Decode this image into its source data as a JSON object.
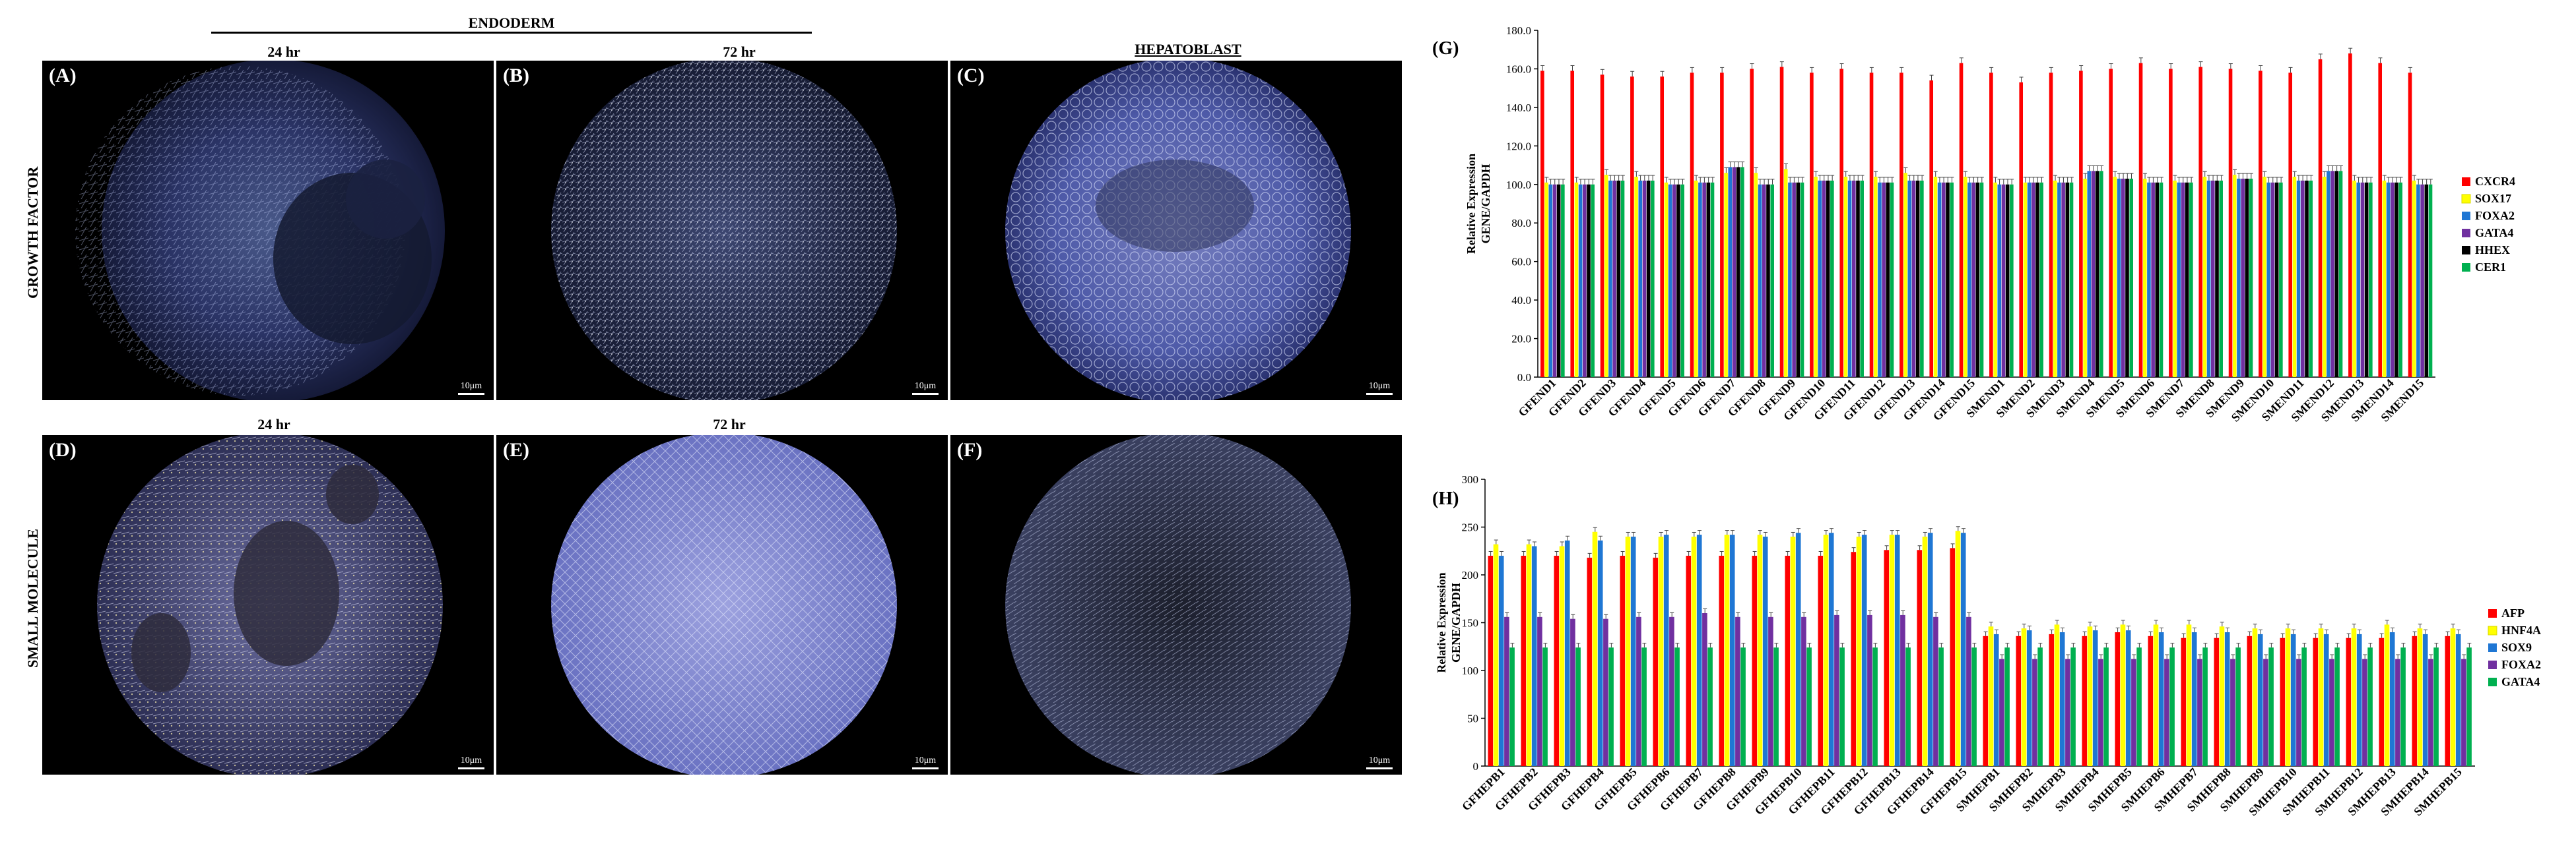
{
  "figure": {
    "endoderm_header": "ENDODERM",
    "col_24hr_top": "24 hr",
    "col_72hr_top": "72 hr",
    "hepatoblast_header": "HEPATOBLAST",
    "col_24hr_bottom": "24 hr",
    "col_72hr_bottom": "72 hr",
    "row_growth_factor": "GROWTH FACTOR",
    "row_small_molecule": "SMALL MOLECULE",
    "panels": [
      {
        "label": "(A)",
        "scale": "10μm"
      },
      {
        "label": "(B)",
        "scale": "10μm"
      },
      {
        "label": "(C)",
        "scale": "10μm"
      },
      {
        "label": "(D)",
        "scale": "10μm"
      },
      {
        "label": "(E)",
        "scale": "10μm"
      },
      {
        "label": "(F)",
        "scale": "10μm"
      }
    ],
    "colors": {
      "red": "#ff0000",
      "yellow": "#ffff00",
      "blue": "#1f77d4",
      "purple": "#7030a0",
      "black": "#000000",
      "green": "#00b050"
    }
  },
  "chart_data": [
    {
      "panel_label": "(G)",
      "type": "bar",
      "title": "",
      "ylabel_line1": "Relative Expression",
      "ylabel_line2": "GENE/GAPDH",
      "ylim": [
        0,
        180
      ],
      "yticks": [
        "0.0",
        "20.0",
        "40.0",
        "60.0",
        "80.0",
        "100.0",
        "120.0",
        "140.0",
        "160.0",
        "180.0"
      ],
      "categories": [
        "GFEND1",
        "GFEND2",
        "GFEND3",
        "GFEND4",
        "GFEND5",
        "GFEND6",
        "GFEND7",
        "GFEND8",
        "GFEND9",
        "GFEND10",
        "GFEND11",
        "GFEND12",
        "GFEND13",
        "GFEND14",
        "GFEND15",
        "SMEND1",
        "SMEND2",
        "SMEND3",
        "SMEND4",
        "SMEND5",
        "SMEND6",
        "SMEND7",
        "SMEND8",
        "SMEND9",
        "SMEND10",
        "SMEND11",
        "SMEND12",
        "SMEND13",
        "SMEND14",
        "SMEND15"
      ],
      "series": [
        {
          "name": "CXCR4",
          "color": "#ff0000",
          "values": [
            159,
            159,
            157,
            156,
            156,
            158,
            158,
            160,
            161,
            158,
            160,
            158,
            158,
            154,
            163,
            158,
            153,
            158,
            159,
            160,
            163,
            160,
            161,
            160,
            159,
            158,
            165,
            168,
            163,
            158
          ]
        },
        {
          "name": "SOX17",
          "color": "#ffff00",
          "values": [
            101,
            101,
            105,
            104,
            101,
            102,
            106,
            106,
            108,
            104,
            104,
            104,
            106,
            104,
            104,
            101,
            101,
            102,
            103,
            104,
            103,
            102,
            104,
            105,
            104,
            104,
            104,
            102,
            102,
            102
          ]
        },
        {
          "name": "FOXA2",
          "color": "#1f77d4",
          "values": [
            100,
            100,
            102,
            102,
            100,
            101,
            109,
            100,
            101,
            102,
            102,
            101,
            102,
            101,
            101,
            100,
            101,
            101,
            107,
            103,
            101,
            101,
            102,
            103,
            101,
            102,
            107,
            101,
            101,
            100
          ]
        },
        {
          "name": "GATA4",
          "color": "#7030a0",
          "values": [
            100,
            100,
            102,
            102,
            100,
            101,
            109,
            100,
            101,
            102,
            102,
            101,
            102,
            101,
            101,
            100,
            101,
            101,
            107,
            103,
            101,
            101,
            102,
            103,
            101,
            102,
            107,
            101,
            101,
            100
          ]
        },
        {
          "name": "HHEX",
          "color": "#000000",
          "values": [
            100,
            100,
            102,
            102,
            100,
            101,
            109,
            100,
            101,
            102,
            102,
            101,
            102,
            101,
            101,
            100,
            101,
            101,
            107,
            103,
            101,
            101,
            102,
            103,
            101,
            102,
            107,
            101,
            101,
            100
          ]
        },
        {
          "name": "CER1",
          "color": "#00b050",
          "values": [
            100,
            100,
            102,
            102,
            100,
            101,
            109,
            100,
            101,
            102,
            102,
            101,
            102,
            101,
            101,
            100,
            101,
            101,
            107,
            103,
            101,
            101,
            102,
            103,
            101,
            102,
            107,
            101,
            101,
            100
          ]
        }
      ]
    },
    {
      "panel_label": "(H)",
      "type": "bar",
      "title": "",
      "ylabel_line1": "Relative Expression",
      "ylabel_line2": "GENE/GAPDH",
      "ylim": [
        0,
        300
      ],
      "yticks": [
        "0",
        "50",
        "100",
        "150",
        "200",
        "250",
        "300"
      ],
      "categories": [
        "GFHEPB1",
        "GFHEPB2",
        "GFHEPB3",
        "GFHEPB4",
        "GFHEPB5",
        "GFHEPB6",
        "GFHEPB7",
        "GFHEPB8",
        "GFHEPB9",
        "GFHEPB10",
        "GFHEPB11",
        "GFHEPB12",
        "GFHEPB13",
        "GFHEPB14",
        "GFHEPB15",
        "SMHEPB1",
        "SMHEPB2",
        "SMHEPB3",
        "SMHEPB4",
        "SMHEPB5",
        "SMHEPB6",
        "SMHEPB7",
        "SMHEPB8",
        "SMHEPB9",
        "SMHEPB10",
        "SMHEPB11",
        "SMHEPB12",
        "SMHEPB13",
        "SMHEPB14",
        "SMHEPB15"
      ],
      "series": [
        {
          "name": "AFP",
          "color": "#ff0000",
          "values": [
            220,
            220,
            220,
            218,
            220,
            218,
            220,
            220,
            220,
            220,
            220,
            224,
            226,
            226,
            228,
            136,
            136,
            138,
            136,
            140,
            136,
            134,
            134,
            136,
            134,
            134,
            134,
            134,
            136,
            136
          ]
        },
        {
          "name": "HNF4A",
          "color": "#ffff00",
          "values": [
            232,
            232,
            230,
            245,
            240,
            240,
            240,
            242,
            242,
            240,
            242,
            240,
            242,
            240,
            246,
            146,
            144,
            148,
            146,
            148,
            148,
            148,
            146,
            144,
            144,
            144,
            144,
            148,
            144,
            144
          ]
        },
        {
          "name": "SOX9",
          "color": "#1f77d4",
          "values": [
            220,
            230,
            236,
            236,
            240,
            242,
            242,
            242,
            240,
            244,
            244,
            242,
            242,
            244,
            244,
            138,
            142,
            140,
            142,
            142,
            140,
            140,
            140,
            138,
            138,
            138,
            138,
            140,
            138,
            138
          ]
        },
        {
          "name": "FOXA2",
          "color": "#7030a0",
          "values": [
            156,
            156,
            154,
            154,
            156,
            156,
            160,
            156,
            156,
            156,
            158,
            158,
            158,
            156,
            156,
            112,
            112,
            112,
            112,
            112,
            112,
            112,
            112,
            112,
            112,
            112,
            112,
            112,
            112,
            112
          ]
        },
        {
          "name": "GATA4",
          "color": "#00b050",
          "values": [
            124,
            124,
            124,
            124,
            124,
            124,
            124,
            124,
            124,
            124,
            124,
            124,
            124,
            124,
            124,
            124,
            124,
            124,
            124,
            124,
            124,
            124,
            124,
            124,
            124,
            124,
            124,
            124,
            124,
            124
          ]
        }
      ]
    }
  ]
}
